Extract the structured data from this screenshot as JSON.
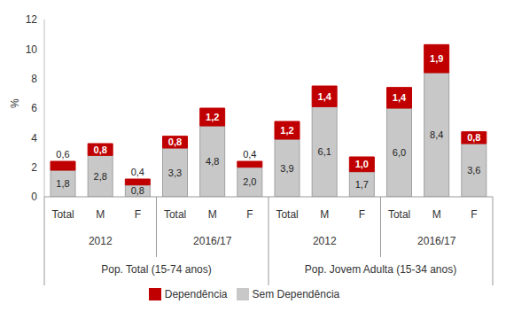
{
  "chart_data": {
    "type": "bar",
    "stacked": true,
    "data_labels": true,
    "legend": "bottom",
    "grid": false,
    "y_label": "%",
    "categories": [
      "Total",
      "M",
      "F",
      "Total",
      "M",
      "F",
      "Total",
      "M",
      "F",
      "Total",
      "M",
      "F"
    ],
    "category_groups": [
      [
        "2012",
        "2012",
        "2012",
        "2016/17",
        "2016/17",
        "2016/17",
        "2012",
        "2012",
        "2012",
        "2016/17",
        "2016/17",
        "2016/17"
      ],
      [
        "Pop. Total (15-74 anos)",
        "Pop. Total (15-74 anos)",
        "Pop. Total (15-74 anos)",
        "Pop. Total (15-74 anos)",
        "Pop. Total (15-74 anos)",
        "Pop. Total (15-74 anos)",
        "Pop. Jovem Adulta (15-34 anos)",
        "Pop. Jovem Adulta (15-34 anos)",
        "Pop. Jovem Adulta (15-34 anos)",
        "Pop. Jovem Adulta (15-34 anos)",
        "Pop. Jovem Adulta (15-34 anos)",
        "Pop. Jovem Adulta (15-34 anos)"
      ]
    ],
    "series": [
      {
        "name": "Sem Dependência",
        "color": "#c8c8c8",
        "values": [
          1.8,
          2.8,
          0.8,
          3.3,
          4.8,
          2.0,
          3.9,
          6.1,
          1.7,
          6.0,
          8.4,
          3.6
        ],
        "value_labels": [
          "1,8",
          "2,8",
          "0,8",
          "3,3",
          "4,8",
          "2,0",
          "3,9",
          "6,1",
          "1,7",
          "6,0",
          "8,4",
          "3,6"
        ]
      },
      {
        "name": "Dependência",
        "color": "#c00000",
        "values": [
          0.6,
          0.8,
          0.4,
          0.8,
          1.2,
          0.4,
          1.2,
          1.4,
          1.0,
          1.4,
          1.9,
          0.8
        ],
        "value_labels": [
          "0,6",
          "0,8",
          "0,4",
          "0,8",
          "1,2",
          "0,4",
          "1,2",
          "1,4",
          "1,0",
          "1,4",
          "1,9",
          "0,8"
        ]
      }
    ],
    "ylim": [
      0,
      12
    ],
    "yticks": [
      0,
      2,
      4,
      6,
      8,
      10,
      12
    ]
  }
}
